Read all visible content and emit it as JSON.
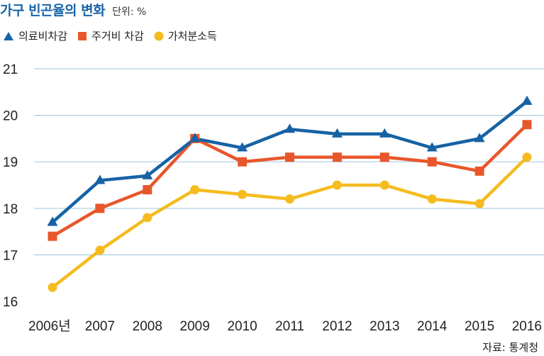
{
  "header": {
    "title": "가구 빈곤율의 변화",
    "unit": "단위: %"
  },
  "source": "자료: 통계청",
  "colors": {
    "medical": "#1662a5",
    "housing": "#e8572b",
    "disposable": "#f5bb1f",
    "grid": "#a9cde3"
  },
  "chart_data": {
    "type": "line",
    "title": "가구 빈곤율의 변화",
    "unit": "단위: %",
    "x": [
      "2006년",
      "2007",
      "2008",
      "2009",
      "2010",
      "2011",
      "2012",
      "2013",
      "2014",
      "2015",
      "2016"
    ],
    "yticks": [
      "16",
      "17",
      "18",
      "19",
      "20",
      "21"
    ],
    "ylim": [
      16,
      21
    ],
    "grid": true,
    "legend_position": "top-left",
    "series": [
      {
        "name": "의료비차감",
        "marker": "triangle",
        "values": [
          17.7,
          18.6,
          18.7,
          19.5,
          19.3,
          19.7,
          19.6,
          19.6,
          19.3,
          19.5,
          20.3
        ]
      },
      {
        "name": "주거비 차감",
        "marker": "square",
        "values": [
          17.4,
          18.0,
          18.4,
          19.5,
          19.0,
          19.1,
          19.1,
          19.1,
          19.0,
          18.8,
          19.8
        ]
      },
      {
        "name": "가처분소득",
        "marker": "circle",
        "values": [
          16.3,
          17.1,
          17.8,
          18.4,
          18.3,
          18.2,
          18.5,
          18.5,
          18.2,
          18.1,
          19.1
        ]
      }
    ]
  }
}
